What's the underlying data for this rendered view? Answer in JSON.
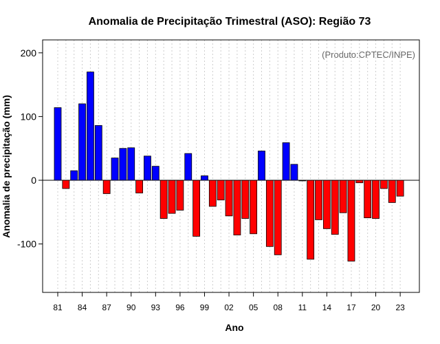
{
  "chart_data": {
    "type": "bar",
    "title": "Anomalia de Precipitação Trimestral (ASO): Região 73",
    "xlabel": "Ano",
    "ylabel": "Anomalia de precipitação (mm)",
    "credit": "(Produto:CPTEC/INPE)",
    "ylim": [
      -175,
      220
    ],
    "yticks": [
      -100,
      0,
      100,
      200
    ],
    "ytick_labels": [
      "-100",
      "0",
      "100",
      "200"
    ],
    "categories": [
      1981,
      1982,
      1983,
      1984,
      1985,
      1986,
      1987,
      1988,
      1989,
      1990,
      1991,
      1992,
      1993,
      1994,
      1995,
      1996,
      1997,
      1998,
      1999,
      2000,
      2001,
      2002,
      2003,
      2004,
      2005,
      2006,
      2007,
      2008,
      2009,
      2010,
      2011,
      2012,
      2013,
      2014,
      2015,
      2016,
      2017,
      2018,
      2019,
      2020,
      2021,
      2022,
      2023
    ],
    "values": [
      114,
      -13,
      15,
      120,
      170,
      86,
      -21,
      35,
      50,
      51,
      -20,
      38,
      22,
      -60,
      -52,
      -47,
      42,
      -88,
      7,
      -41,
      -31,
      -56,
      -86,
      -60,
      -84,
      46,
      -104,
      -117,
      59,
      25,
      -1,
      -124,
      -62,
      -76,
      -85,
      -51,
      -127,
      -4,
      -59,
      -60,
      -13,
      -35,
      -25
    ],
    "xtick_years": [
      1981,
      1984,
      1987,
      1990,
      1993,
      1996,
      1999,
      2002,
      2005,
      2008,
      2011,
      2014,
      2017,
      2020,
      2023
    ],
    "xtick_labels": [
      "81",
      "84",
      "87",
      "90",
      "93",
      "96",
      "99",
      "02",
      "05",
      "08",
      "11",
      "14",
      "17",
      "20",
      "23"
    ],
    "colors": {
      "positive": "#0000ff",
      "negative": "#ff0000",
      "zero_line": "#000000",
      "grid": "#cccccc"
    }
  }
}
